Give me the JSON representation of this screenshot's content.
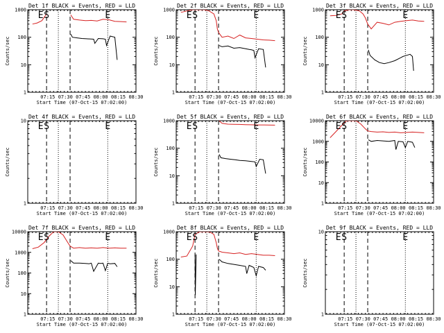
{
  "figure": {
    "x_tick_labels": [
      "07:15",
      "07:30",
      "07:45",
      "08:00",
      "08:15",
      "08:30"
    ],
    "x_label": "Start Time (07-Oct-15 07:02:00)",
    "y_label": "Counts/sec",
    "series_colors": {
      "events": "#000000",
      "lld": "#d62020"
    }
  },
  "chart_data": [
    {
      "title": "Det 1f BLACK = Events, RED = LLD",
      "type": "line",
      "yscale": "log",
      "ylim": [
        1,
        1000
      ],
      "y_tick_labels": [
        "1",
        "10",
        "100",
        "1000"
      ],
      "markers": [
        {
          "text": "E",
          "t": 7.0
        },
        {
          "text": "S",
          "t": 12.0
        },
        {
          "text": "E",
          "t": 64.0
        }
      ],
      "dashed_lines": [
        12.0,
        32.0
      ],
      "dotted_lines": [
        22.0,
        64.0
      ],
      "series": [
        {
          "color": "#d62020",
          "x": [
            0,
            4,
            8,
            12,
            12,
            32,
            32.5,
            35,
            40,
            45,
            50,
            55,
            60,
            65,
            70,
            75,
            80
          ],
          "y": [
            300,
            330,
            400,
            700,
            null,
            null,
            650,
            450,
            420,
            400,
            410,
            390,
            450,
            430,
            380,
            370,
            360
          ]
        },
        {
          "color": "#000000",
          "x": [
            32,
            32.5,
            34,
            38,
            42,
            46,
            50,
            52,
            53,
            56,
            60,
            62,
            63,
            66,
            70,
            72
          ],
          "y": [
            null,
            130,
            100,
            95,
            90,
            88,
            86,
            85,
            60,
            90,
            88,
            85,
            50,
            110,
            100,
            15
          ]
        }
      ]
    },
    {
      "title": "Det 2f BLACK = Events, RED = LLD",
      "type": "line",
      "yscale": "log",
      "ylim": [
        1,
        1000
      ],
      "y_tick_labels": [
        "1",
        "10",
        "100",
        "1000"
      ],
      "markers": [
        {
          "text": "E",
          "t": 7.0
        },
        {
          "text": "S",
          "t": 12.0
        },
        {
          "text": "E",
          "t": 64.0
        }
      ],
      "dashed_lines": [
        12.0,
        32.0
      ],
      "dotted_lines": [
        22.0,
        64.0
      ],
      "series": [
        {
          "color": "#d62020",
          "x": [
            0,
            5,
            10,
            12,
            16,
            20,
            24,
            28,
            30,
            31,
            32,
            35,
            40,
            45,
            50,
            55,
            60,
            65,
            70,
            75,
            80
          ],
          "y": [
            800,
            900,
            1000,
            1000,
            1000,
            1000,
            900,
            700,
            400,
            200,
            150,
            100,
            110,
            90,
            120,
            95,
            90,
            85,
            80,
            78,
            75
          ]
        },
        {
          "color": "#000000",
          "x": [
            32,
            32.5,
            35,
            40,
            45,
            50,
            55,
            58,
            60,
            62,
            63,
            66,
            70,
            72
          ],
          "y": [
            null,
            50,
            45,
            48,
            40,
            42,
            38,
            36,
            35,
            33,
            18,
            38,
            36,
            8
          ]
        }
      ]
    },
    {
      "title": "Det 3f BLACK = Events, RED = LLD",
      "type": "line",
      "yscale": "log",
      "ylim": [
        1,
        1000
      ],
      "y_tick_labels": [
        "1",
        "10",
        "100",
        "1000"
      ],
      "markers": [
        {
          "text": "E",
          "t": 7.0
        },
        {
          "text": "S",
          "t": 12.0
        },
        {
          "text": "E",
          "t": 64.0
        }
      ],
      "dashed_lines": [
        12.0,
        32.0
      ],
      "dotted_lines": [
        22.0,
        64.0
      ],
      "series": [
        {
          "color": "#d62020",
          "x": [
            0,
            5,
            10,
            12,
            16,
            20,
            25,
            28,
            30,
            32,
            35,
            40,
            45,
            50,
            55,
            60,
            65,
            70,
            75,
            80
          ],
          "y": [
            600,
            620,
            700,
            900,
            1000,
            1000,
            900,
            700,
            500,
            300,
            200,
            350,
            320,
            280,
            350,
            380,
            400,
            420,
            390,
            380
          ]
        },
        {
          "color": "#000000",
          "x": [
            32,
            32.5,
            34,
            38,
            42,
            46,
            50,
            55,
            60,
            62,
            65,
            68,
            70,
            71
          ],
          "y": [
            null,
            35,
            22,
            15,
            12,
            11,
            12,
            14,
            18,
            20,
            22,
            24,
            20,
            6
          ]
        }
      ]
    },
    {
      "title": "Det 4f BLACK = Events, RED = LLD",
      "type": "line",
      "yscale": "log",
      "ylim": [
        1,
        10
      ],
      "y_tick_labels": [
        "1",
        "10"
      ],
      "markers": [
        {
          "text": "E",
          "t": 7.0
        },
        {
          "text": "S",
          "t": 12.0
        },
        {
          "text": "E",
          "t": 64.0
        }
      ],
      "dashed_lines": [
        12.0,
        32.0
      ],
      "dotted_lines": [
        22.0,
        64.0
      ],
      "series": []
    },
    {
      "title": "Det 5f BLACK = Events, RED = LLD",
      "type": "line",
      "yscale": "log",
      "ylim": [
        1,
        1000
      ],
      "y_tick_labels": [
        "1",
        "10",
        "100",
        "1000"
      ],
      "markers": [
        {
          "text": "E",
          "t": 7.0
        },
        {
          "text": "S",
          "t": 12.0
        },
        {
          "text": "E",
          "t": 64.0
        }
      ],
      "dashed_lines": [
        12.0,
        32.0
      ],
      "dotted_lines": [
        22.0,
        64.0
      ],
      "series": [
        {
          "color": "#d62020",
          "x": [
            32,
            32.5,
            35,
            40,
            45,
            50,
            55,
            60,
            65,
            70,
            75,
            80
          ],
          "y": [
            null,
            1000,
            800,
            750,
            740,
            730,
            720,
            710,
            700,
            700,
            695,
            690
          ]
        },
        {
          "color": "#000000",
          "x": [
            32,
            32.5,
            34,
            38,
            42,
            46,
            50,
            55,
            60,
            63,
            64,
            67,
            70,
            72
          ],
          "y": [
            null,
            60,
            45,
            42,
            40,
            38,
            36,
            35,
            33,
            32,
            22,
            40,
            38,
            12
          ]
        }
      ]
    },
    {
      "title": "Det 6f BLACK = Events, RED = LLD",
      "type": "line",
      "yscale": "log",
      "ylim": [
        1,
        10000
      ],
      "y_tick_labels": [
        "1",
        "10",
        "100",
        "1000",
        "10000"
      ],
      "markers": [
        {
          "text": "E",
          "t": 7.0
        },
        {
          "text": "S",
          "t": 12.0
        },
        {
          "text": "E",
          "t": 64.0
        }
      ],
      "dashed_lines": [
        12.0,
        32.0
      ],
      "dotted_lines": [
        22.0,
        64.0
      ],
      "series": [
        {
          "color": "#d62020",
          "x": [
            0,
            5,
            10,
            14,
            18,
            22,
            26,
            30,
            32,
            35,
            40,
            45,
            50,
            55,
            60,
            65,
            70,
            75,
            80
          ],
          "y": [
            1500,
            3000,
            6000,
            10000,
            10000,
            10000,
            7000,
            4000,
            3200,
            3000,
            2800,
            2900,
            2700,
            2800,
            2600,
            2700,
            2800,
            2700,
            2600
          ]
        },
        {
          "color": "#000000",
          "x": [
            32,
            32.5,
            35,
            40,
            45,
            50,
            55,
            56,
            58,
            62,
            64,
            66,
            68,
            70,
            72
          ],
          "y": [
            null,
            1200,
            1000,
            1100,
            1050,
            1000,
            1100,
            400,
            1000,
            950,
            500,
            1000,
            950,
            900,
            500
          ]
        }
      ]
    },
    {
      "title": "Det 7f BLACK = Events, RED = LLD",
      "type": "line",
      "yscale": "log",
      "ylim": [
        1,
        10000
      ],
      "y_tick_labels": [
        "1",
        "10",
        "100",
        "1000",
        "10000"
      ],
      "markers": [
        {
          "text": "E",
          "t": 7.0
        },
        {
          "text": "S",
          "t": 12.0
        },
        {
          "text": "E",
          "t": 64.0
        }
      ],
      "dashed_lines": [
        12.0,
        32.0
      ],
      "dotted_lines": [
        22.0,
        64.0
      ],
      "series": [
        {
          "color": "#d62020",
          "x": [
            0,
            5,
            10,
            14,
            18,
            22,
            26,
            30,
            32,
            35,
            40,
            45,
            50,
            55,
            60,
            65,
            70,
            75,
            80
          ],
          "y": [
            1500,
            1800,
            3000,
            6000,
            10000,
            10000,
            7000,
            3000,
            2000,
            1600,
            1700,
            1600,
            1650,
            1600,
            1700,
            1600,
            1650,
            1600,
            1600
          ]
        },
        {
          "color": "#000000",
          "x": [
            32,
            32.5,
            35,
            40,
            45,
            48,
            50,
            52,
            56,
            58,
            60,
            62,
            64,
            66,
            70,
            72
          ],
          "y": [
            null,
            400,
            300,
            300,
            290,
            280,
            300,
            120,
            300,
            290,
            300,
            130,
            300,
            280,
            290,
            200
          ]
        }
      ]
    },
    {
      "title": "Det 8f BLACK = Events, RED = LLD",
      "type": "line",
      "yscale": "log",
      "ylim": [
        1,
        1000
      ],
      "y_tick_labels": [
        "1",
        "10",
        "100",
        "1000"
      ],
      "markers": [
        {
          "text": "E",
          "t": 7.0
        },
        {
          "text": "S",
          "t": 12.0
        },
        {
          "text": "E",
          "t": 64.0
        }
      ],
      "dashed_lines": [
        12.0,
        32.0
      ],
      "dotted_lines": [
        22.0,
        64.0
      ],
      "series": [
        {
          "color": "#d62020",
          "x": [
            0,
            5,
            10,
            12,
            16,
            20,
            24,
            28,
            30,
            31,
            32,
            35,
            40,
            45,
            50,
            55,
            60,
            65,
            70,
            75,
            80
          ],
          "y": [
            120,
            130,
            300,
            800,
            1000,
            1000,
            1000,
            800,
            400,
            250,
            200,
            180,
            170,
            160,
            170,
            150,
            160,
            150,
            140,
            140,
            135
          ]
        },
        {
          "color": "#000000",
          "x": [
            32,
            32.5,
            35,
            40,
            45,
            50,
            55,
            56,
            58,
            60,
            62,
            64,
            66,
            70,
            72
          ],
          "y": [
            null,
            100,
            80,
            70,
            65,
            60,
            55,
            30,
            60,
            55,
            50,
            25,
            55,
            50,
            40
          ]
        },
        {
          "color": "#000000",
          "x": [
            12.0,
            12.2,
            13.0
          ],
          "y": [
            150,
            5,
            150
          ]
        }
      ]
    },
    {
      "title": "Det 9f BLACK = Events, RED = LLD",
      "type": "line",
      "yscale": "log",
      "ylim": [
        1,
        10
      ],
      "y_tick_labels": [
        "1",
        "10"
      ],
      "markers": [
        {
          "text": "E",
          "t": 7.0
        },
        {
          "text": "S",
          "t": 12.0
        },
        {
          "text": "E",
          "t": 64.0
        }
      ],
      "dashed_lines": [
        12.0,
        32.0
      ],
      "dotted_lines": [
        22.0,
        64.0
      ],
      "series": []
    }
  ]
}
